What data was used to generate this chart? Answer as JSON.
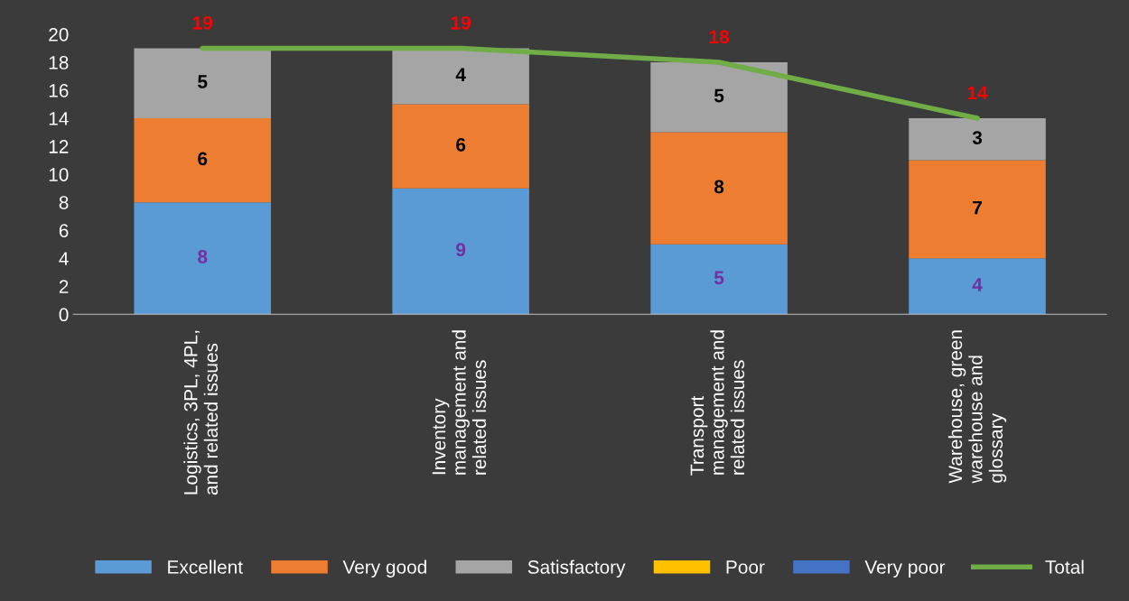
{
  "chart_data": {
    "type": "bar",
    "stacked": true,
    "categories": [
      "Logistics, 3PL, 4PL,\nand related issues",
      "Inventory\nmanagement and\nrelated issues",
      "Transport\nmanagement and\nrelated issues",
      "Warehouse, green\nwarehouse and\nglossary"
    ],
    "series": [
      {
        "name": "Excellent",
        "color": "#5b9bd5",
        "values": [
          8,
          9,
          5,
          4
        ],
        "value_labels": [
          "8",
          "9",
          "5",
          "4"
        ]
      },
      {
        "name": "Very good",
        "color": "#ed7d31",
        "values": [
          6,
          6,
          8,
          7
        ],
        "value_labels": [
          "6",
          "6",
          "8",
          "7"
        ]
      },
      {
        "name": "Satisfactory",
        "color": "#a5a5a5",
        "values": [
          5,
          4,
          5,
          3
        ],
        "value_labels": [
          "5",
          "4",
          "5",
          "3"
        ]
      },
      {
        "name": "Poor",
        "color": "#ffc000",
        "values": [
          0,
          0,
          0,
          0
        ],
        "value_labels": [
          null,
          null,
          null,
          null
        ]
      },
      {
        "name": "Very poor",
        "color": "#4472c4",
        "values": [
          0,
          0,
          0,
          0
        ],
        "value_labels": [
          null,
          null,
          null,
          null
        ]
      },
      {
        "name": "Total",
        "type": "line",
        "color": "#70ad47",
        "values": [
          19,
          19,
          18,
          14
        ],
        "value_labels": [
          "19",
          "19",
          "18",
          "14"
        ]
      }
    ],
    "ylim": [
      0,
      20
    ],
    "yticks": [
      0,
      2,
      4,
      6,
      8,
      10,
      12,
      14,
      16,
      18,
      20
    ],
    "grid": false,
    "legend": "bottom",
    "marker": "none",
    "line_style": "solid"
  }
}
